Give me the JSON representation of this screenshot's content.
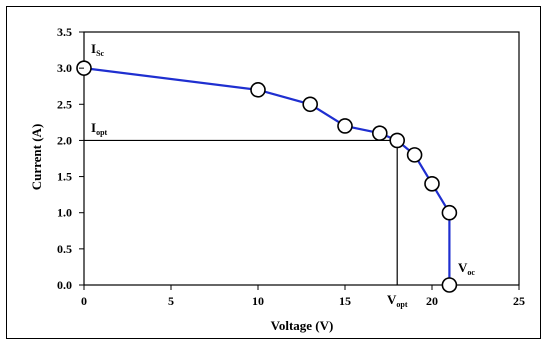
{
  "chart_data": {
    "type": "line",
    "xlabel": "Voltage (V)",
    "ylabel": "Current (A)",
    "xlim": [
      0,
      25
    ],
    "ylim": [
      0,
      3.5
    ],
    "x_ticks": [
      "0",
      "5",
      "10",
      "15",
      "20",
      "25"
    ],
    "y_ticks": [
      "0.0",
      "0.5",
      "1.0",
      "1.5",
      "2.0",
      "2.5",
      "3.0",
      "3.5"
    ],
    "grid": false,
    "series": [
      {
        "x": [
          0,
          10,
          13,
          15,
          17,
          18,
          19,
          20,
          21,
          21
        ],
        "y": [
          3.0,
          2.7,
          2.5,
          2.2,
          2.1,
          2.0,
          1.8,
          1.4,
          1.0,
          0.0
        ],
        "color": "#1f2fd0",
        "marker": "circle"
      }
    ],
    "reference_point": {
      "x": 18,
      "y": 2.0
    },
    "annotations": {
      "isc": {
        "main": "I",
        "sub": "Sc"
      },
      "iopt": {
        "main": "I",
        "sub": "opt"
      },
      "vopt": {
        "main": "V",
        "sub": "opt"
      },
      "voc": {
        "main": "V",
        "sub": "oc"
      }
    }
  }
}
